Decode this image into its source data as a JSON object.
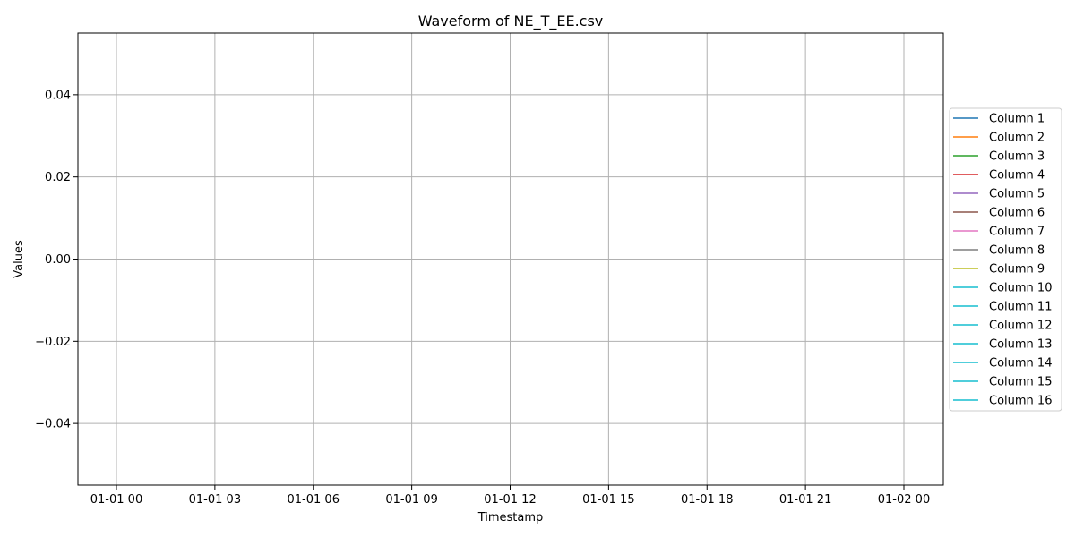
{
  "chart_data": {
    "type": "line",
    "title": "Waveform of NE_T_EE.csv",
    "xlabel": "Timestamp",
    "ylabel": "Values",
    "x_ticks": [
      "01-01 00",
      "01-01 03",
      "01-01 06",
      "01-01 09",
      "01-01 12",
      "01-01 15",
      "01-01 18",
      "01-01 21",
      "01-02 00"
    ],
    "y_ticks": [
      {
        "value": 0.04,
        "label": "0.04"
      },
      {
        "value": 0.02,
        "label": "0.02"
      },
      {
        "value": 0.0,
        "label": "0.00"
      },
      {
        "value": -0.02,
        "label": "−0.02"
      },
      {
        "value": -0.04,
        "label": "−0.04"
      }
    ],
    "ylim": [
      -0.055,
      0.055
    ],
    "grid": true,
    "legend_position": "right-outside",
    "series": [
      {
        "name": "Column 1",
        "color": "#1f77b4",
        "values": []
      },
      {
        "name": "Column 2",
        "color": "#ff7f0e",
        "values": []
      },
      {
        "name": "Column 3",
        "color": "#2ca02c",
        "values": []
      },
      {
        "name": "Column 4",
        "color": "#d62728",
        "values": []
      },
      {
        "name": "Column 5",
        "color": "#9467bd",
        "values": []
      },
      {
        "name": "Column 6",
        "color": "#8c564b",
        "values": []
      },
      {
        "name": "Column 7",
        "color": "#e377c2",
        "values": []
      },
      {
        "name": "Column 8",
        "color": "#7f7f7f",
        "values": []
      },
      {
        "name": "Column 9",
        "color": "#bcbd22",
        "values": []
      },
      {
        "name": "Column 10",
        "color": "#17becf",
        "values": []
      },
      {
        "name": "Column 11",
        "color": "#17becf",
        "values": []
      },
      {
        "name": "Column 12",
        "color": "#17becf",
        "values": []
      },
      {
        "name": "Column 13",
        "color": "#17becf",
        "values": []
      },
      {
        "name": "Column 14",
        "color": "#17becf",
        "values": []
      },
      {
        "name": "Column 15",
        "color": "#17becf",
        "values": []
      },
      {
        "name": "Column 16",
        "color": "#17becf",
        "values": []
      }
    ]
  }
}
